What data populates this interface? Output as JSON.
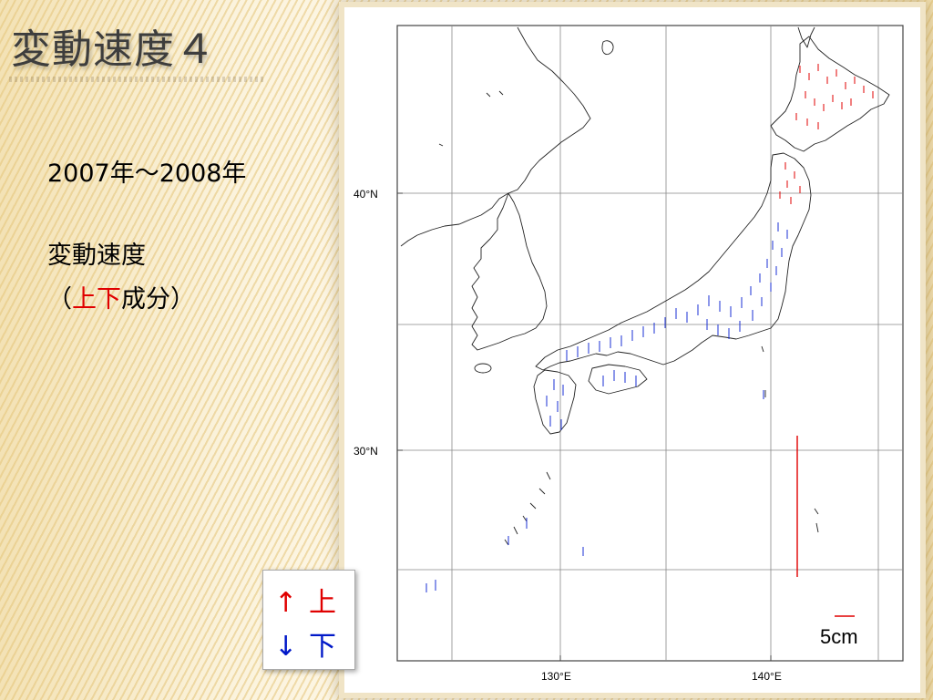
{
  "slide": {
    "title": "変動速度４",
    "period": "2007年～2008年",
    "label_line1": "変動速度",
    "label_open_paren": "（",
    "label_up": "上",
    "label_down": "下",
    "label_component": "成分）"
  },
  "legend": {
    "up_arrow": "↑",
    "up_text": "上",
    "down_arrow": "↓",
    "down_text": "下"
  },
  "map": {
    "lat_labels": [
      "40°N",
      "30°N"
    ],
    "lon_labels": [
      "130°E",
      "140°E"
    ],
    "scale_label": "5cm"
  },
  "colors": {
    "uplift": "#e00000",
    "subsidence": "#1a2fd6",
    "title_text": "#3d3d3d"
  }
}
